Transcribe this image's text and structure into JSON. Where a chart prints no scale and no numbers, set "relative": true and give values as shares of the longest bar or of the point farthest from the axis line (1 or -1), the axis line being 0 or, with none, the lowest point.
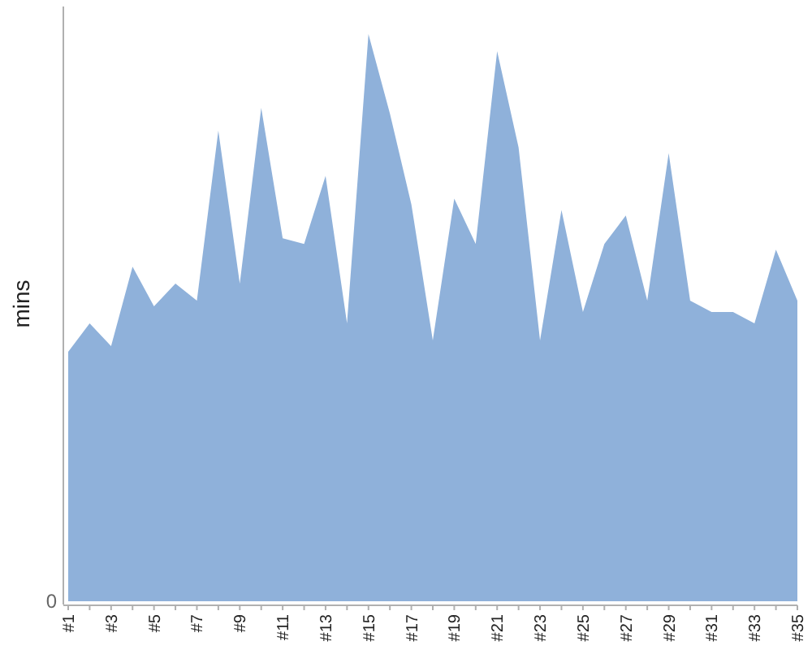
{
  "chart_data": {
    "type": "area",
    "relative": true,
    "ylabel": "mins",
    "annotations": [
      "0"
    ],
    "categories": [
      "#1",
      null,
      "#3",
      null,
      "#5",
      null,
      "#7",
      null,
      "#9",
      null,
      "#11",
      null,
      "#13",
      null,
      "#15",
      null,
      "#17",
      null,
      "#19",
      null,
      "#21",
      null,
      "#23",
      null,
      "#25",
      null,
      "#27",
      null,
      "#29",
      null,
      "#31",
      null,
      "#33",
      null,
      "#35"
    ],
    "values": [
      0.44,
      0.49,
      0.45,
      0.59,
      0.52,
      0.56,
      0.53,
      0.83,
      0.56,
      0.87,
      0.64,
      0.63,
      0.75,
      0.49,
      1,
      0.86,
      0.7,
      0.46,
      0.71,
      0.63,
      0.97,
      0.8,
      0.46,
      0.69,
      0.51,
      0.63,
      0.68,
      0.53,
      0.79,
      0.53,
      0.51,
      0.51,
      0.49,
      0.62,
      0.53
    ],
    "color": "#8fb1da"
  }
}
